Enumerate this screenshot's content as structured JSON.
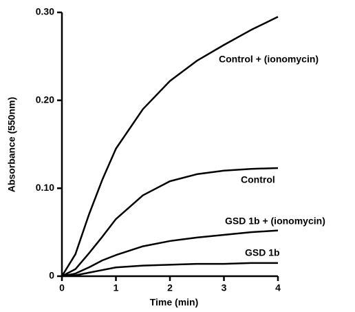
{
  "chart_data": {
    "type": "line",
    "xlabel": "Time (min)",
    "ylabel": "Absorbance (550nm)",
    "x": [
      0,
      0.25,
      0.5,
      0.75,
      1,
      1.5,
      2,
      2.5,
      3,
      3.5,
      4
    ],
    "series": [
      {
        "name": "Control + (ionomycin)",
        "color": "#000000",
        "values": [
          0,
          0.025,
          0.07,
          0.11,
          0.145,
          0.19,
          0.222,
          0.245,
          0.263,
          0.28,
          0.295
        ]
      },
      {
        "name": "Control",
        "color": "#000000",
        "values": [
          0,
          0.008,
          0.026,
          0.045,
          0.065,
          0.092,
          0.108,
          0.116,
          0.12,
          0.122,
          0.123
        ]
      },
      {
        "name": "GSD 1b + (ionomycin)",
        "color": "#000000",
        "values": [
          0,
          0.003,
          0.01,
          0.018,
          0.024,
          0.034,
          0.04,
          0.044,
          0.047,
          0.05,
          0.052
        ]
      },
      {
        "name": "GSD 1b",
        "color": "#000000",
        "values": [
          0,
          0.001,
          0.004,
          0.007,
          0.01,
          0.012,
          0.013,
          0.014,
          0.014,
          0.015,
          0.015
        ]
      }
    ],
    "xlim": [
      0,
      4
    ],
    "xticks": [
      0,
      1,
      2,
      3,
      4
    ],
    "ylim": [
      0,
      0.3
    ],
    "yticks": [
      0,
      {
        "value": 0.1,
        "label": "0.10"
      },
      {
        "value": 0.2,
        "label": "0.20"
      },
      {
        "value": 0.3,
        "label": "0.30"
      }
    ]
  }
}
